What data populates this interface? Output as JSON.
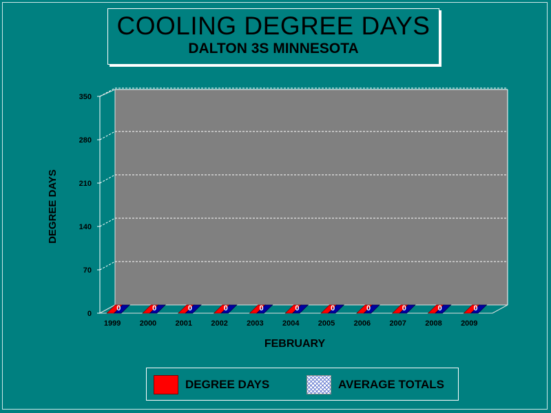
{
  "title": "COOLING DEGREE DAYS",
  "subtitle": "DALTON 3S MINNESOTA",
  "colors": {
    "background": "#008080",
    "plot": "#808080",
    "degree_days": "#ff0000",
    "average_totals": "#0000a0"
  },
  "chart_data": {
    "type": "bar",
    "title": "COOLING DEGREE DAYS",
    "subtitle": "DALTON 3S MINNESOTA",
    "xlabel": "FEBRUARY",
    "ylabel": "DEGREE DAYS",
    "ylim": [
      0,
      350
    ],
    "yticks": [
      "0",
      "70",
      "140",
      "210",
      "280",
      "350"
    ],
    "categories": [
      "1999",
      "2000",
      "2001",
      "2002",
      "2003",
      "2004",
      "2005",
      "2006",
      "2007",
      "2008",
      "2009"
    ],
    "series": [
      {
        "name": "DEGREE DAYS",
        "values": [
          0,
          0,
          0,
          0,
          0,
          0,
          0,
          0,
          0,
          0,
          0
        ]
      },
      {
        "name": "AVERAGE TOTALS",
        "values": [
          0,
          0,
          0,
          0,
          0,
          0,
          0,
          0,
          0,
          0,
          0
        ]
      }
    ],
    "data_labels": [
      "0",
      "0",
      "0",
      "0",
      "0",
      "0",
      "0",
      "0",
      "0",
      "0",
      "0"
    ],
    "grid": true,
    "legend_position": "bottom"
  }
}
